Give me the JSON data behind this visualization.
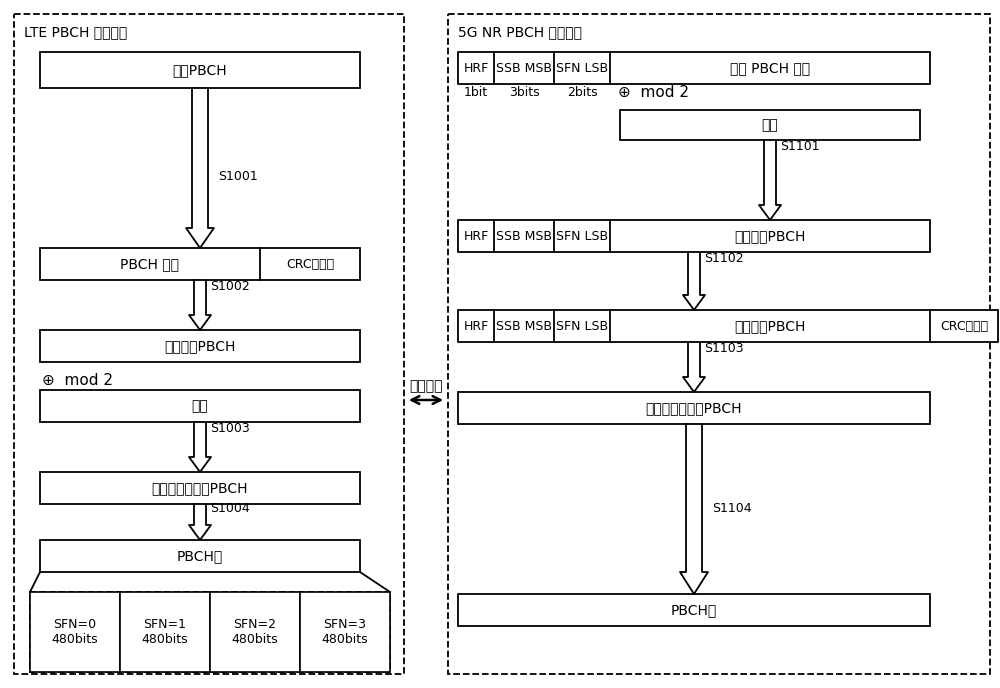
{
  "bg_color": "#ffffff",
  "line_color": "#000000",
  "font_size": 9,
  "lte_title": "LTE PBCH 编码过程",
  "nr_title": "5G NR PBCH 编码过程",
  "middle_label": "过程对应",
  "lte_box1_text": "原始PBCH",
  "lte_box2a_text": "PBCH 内容",
  "lte_box2b_text": "CRC校验码",
  "lte_box3_text": "编码后的PBCH",
  "lte_xor_text": "⊕  mod 2",
  "lte_box4_text": "扰码",
  "lte_box5_text": "加扰且编码后的PBCH",
  "lte_box6_text": "PBCH包",
  "sfn_texts": [
    "SFN=0\n480bits",
    "SFN=1\n480bits",
    "SFN=2\n480bits",
    "SFN=3\n480bits"
  ],
  "nr_hrf": "HRF",
  "nr_ssb": "SSB MSB",
  "nr_sfn": "SFN LSB",
  "nr_remain": "剩余 PBCH 内容",
  "nr_1bit": "1bit",
  "nr_3bits": "3bits",
  "nr_2bits": "2bits",
  "nr_xor_text": "⊕  mod 2",
  "nr_scramble_text": "扰码",
  "nr_box2_right": "加扰后的PBCH",
  "nr_box3_right": "加扰后的PBCH",
  "nr_box3_crc": "CRC校验码",
  "nr_box4_text": "加扰且编码后的PBCH",
  "nr_box5_text": "PBCH包",
  "s1001": "S1001",
  "s1002": "S1002",
  "s1003": "S1003",
  "s1004": "S1004",
  "s1101": "S1101",
  "s1102": "S1102",
  "s1103": "S1103",
  "s1104": "S1104"
}
